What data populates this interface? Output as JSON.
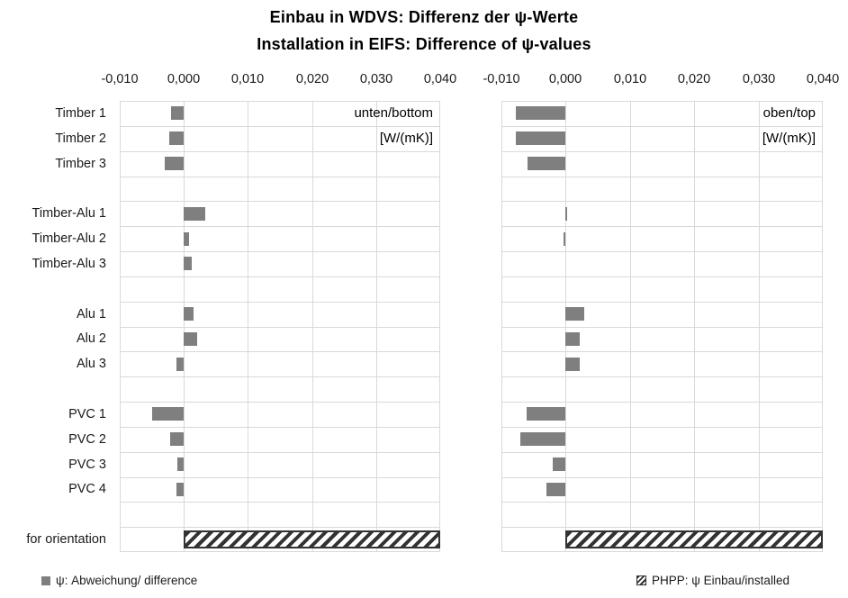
{
  "title": {
    "line1": "Einbau in WDVS: Differenz der  ψ-Werte",
    "line2": "Installation in EIFS:  Difference of  ψ-values"
  },
  "legend": {
    "solid_label": "ψ: Abweichung/ difference",
    "hatch_label": "PHPP: ψ Einbau/installed"
  },
  "colors": {
    "bar": "#7f7f7f",
    "grid": "#d9d9d9",
    "hatch_stripe": "#333333",
    "background": "#ffffff",
    "text": "#000000"
  },
  "chart_data": {
    "type": "bar",
    "orientation": "horizontal",
    "title": "Einbau in WDVS: Differenz der ψ-Werte / Installation in EIFS: Difference of ψ-values",
    "categories": [
      "Timber 1",
      "Timber 2",
      "Timber 3",
      "",
      "Timber-Alu 1",
      "Timber-Alu 2",
      "Timber-Alu 3",
      "",
      "Alu 1",
      "Alu 2",
      "Alu 3",
      "",
      "PVC 1",
      "PVC 2",
      "PVC 3",
      "PVC 4",
      "",
      "for orientation"
    ],
    "xlim": [
      -0.01,
      0.04
    ],
    "xticks": [
      -0.01,
      0.0,
      0.01,
      0.02,
      0.03,
      0.04
    ],
    "xtick_labels": [
      "-0,010",
      "0,000",
      "0,010",
      "0,020",
      "0,030",
      "0,040"
    ],
    "grid": true,
    "legend_position": "bottom",
    "hatch_row_index": 17,
    "series": [
      {
        "name": "unten/bottom",
        "unit": "[W/(mK)]",
        "values": [
          -0.002,
          -0.0023,
          -0.003,
          null,
          0.0034,
          0.0008,
          0.0012,
          null,
          0.0015,
          0.0021,
          -0.0012,
          null,
          -0.005,
          -0.0021,
          -0.001,
          -0.0011,
          null,
          0.04
        ]
      },
      {
        "name": "oben/top",
        "unit": "[W/(mK)]",
        "values": [
          -0.0077,
          -0.0078,
          -0.006,
          null,
          0.0002,
          -0.0004,
          0.0,
          null,
          0.0029,
          0.0022,
          0.0022,
          null,
          -0.0061,
          -0.007,
          -0.002,
          -0.003,
          null,
          0.04
        ]
      }
    ]
  }
}
